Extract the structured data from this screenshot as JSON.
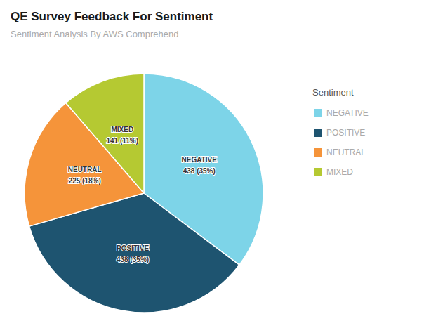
{
  "chart_data": {
    "type": "pie",
    "title": "QE Survey Feedback For Sentiment",
    "subtitle": "Sentiment Analysis By AWS Comprehend",
    "categories": [
      "NEGATIVE",
      "POSITIVE",
      "NEUTRAL",
      "MIXED"
    ],
    "values": [
      438,
      438,
      225,
      141
    ],
    "value_labels": [
      "438 (35%)",
      "438 (35%)",
      "225 (18%)",
      "141 (11%)"
    ],
    "colors": [
      "#7dd4e8",
      "#1e5470",
      "#f5943a",
      "#b5c932"
    ],
    "legend_title": "Sentiment",
    "legend": "right",
    "data_labels": true
  }
}
